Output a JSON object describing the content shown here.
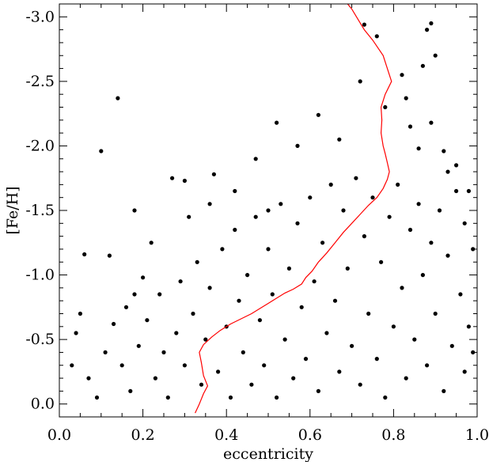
{
  "chart_data": {
    "type": "scatter",
    "xlabel": "eccentricity",
    "ylabel": "[Fe/H]",
    "xlim": [
      0.0,
      1.0
    ],
    "ylim": [
      0.1,
      -3.1
    ],
    "y_axis_inverted": true,
    "x_ticks": [
      0.0,
      0.2,
      0.4,
      0.6,
      0.8,
      1.0
    ],
    "x_tick_labels": [
      "0.0",
      "0.2",
      "0.4",
      "0.6",
      "0.8",
      "1.0"
    ],
    "y_ticks": [
      -3.0,
      -2.5,
      -2.0,
      -1.5,
      -1.0,
      -0.5,
      0.0
    ],
    "y_tick_labels": [
      "-3.0",
      "-2.5",
      "-2.0",
      "-1.5",
      "-1.0",
      "-0.5",
      "0.0"
    ],
    "grid": false,
    "legend": "none",
    "colors": {
      "points": "#000000",
      "trend_line": "#ff0000"
    },
    "series": [
      {
        "type": "scatter",
        "points": [
          [
            0.14,
            -2.37
          ],
          [
            0.1,
            -1.96
          ],
          [
            0.06,
            -1.16
          ],
          [
            0.12,
            -1.15
          ],
          [
            0.18,
            -1.5
          ],
          [
            0.27,
            -1.75
          ],
          [
            0.3,
            -1.73
          ],
          [
            0.37,
            -1.78
          ],
          [
            0.52,
            -2.18
          ],
          [
            0.57,
            -2.0
          ],
          [
            0.62,
            -2.24
          ],
          [
            0.67,
            -2.05
          ],
          [
            0.72,
            -2.5
          ],
          [
            0.73,
            -2.94
          ],
          [
            0.76,
            -2.85
          ],
          [
            0.78,
            -2.3
          ],
          [
            0.83,
            -2.37
          ],
          [
            0.84,
            -2.15
          ],
          [
            0.82,
            -2.55
          ],
          [
            0.87,
            -2.62
          ],
          [
            0.88,
            -2.9
          ],
          [
            0.89,
            -2.95
          ],
          [
            0.9,
            -2.7
          ],
          [
            0.89,
            -2.18
          ],
          [
            0.86,
            -1.98
          ],
          [
            0.92,
            -1.96
          ],
          [
            0.98,
            -1.65
          ],
          [
            0.95,
            -1.85
          ],
          [
            0.47,
            -1.9
          ],
          [
            0.42,
            -1.65
          ],
          [
            0.5,
            -1.5
          ],
          [
            0.36,
            -1.55
          ],
          [
            0.31,
            -1.45
          ],
          [
            0.22,
            -1.25
          ],
          [
            0.2,
            -0.98
          ],
          [
            0.18,
            -0.85
          ],
          [
            0.99,
            -0.4
          ],
          [
            0.97,
            -0.25
          ],
          [
            0.03,
            -0.3
          ],
          [
            0.04,
            -0.55
          ],
          [
            0.05,
            -0.7
          ],
          [
            0.07,
            -0.2
          ],
          [
            0.09,
            -0.05
          ],
          [
            0.11,
            -0.4
          ],
          [
            0.13,
            -0.62
          ],
          [
            0.15,
            -0.3
          ],
          [
            0.16,
            -0.75
          ],
          [
            0.17,
            -0.1
          ],
          [
            0.19,
            -0.45
          ],
          [
            0.21,
            -0.65
          ],
          [
            0.23,
            -0.2
          ],
          [
            0.24,
            -0.85
          ],
          [
            0.25,
            -0.4
          ],
          [
            0.26,
            -0.05
          ],
          [
            0.28,
            -0.55
          ],
          [
            0.29,
            -0.95
          ],
          [
            0.3,
            -0.3
          ],
          [
            0.32,
            -0.7
          ],
          [
            0.33,
            -1.1
          ],
          [
            0.34,
            -0.15
          ],
          [
            0.35,
            -0.5
          ],
          [
            0.36,
            -0.9
          ],
          [
            0.38,
            -0.25
          ],
          [
            0.39,
            -1.2
          ],
          [
            0.4,
            -0.6
          ],
          [
            0.41,
            -0.05
          ],
          [
            0.42,
            -1.35
          ],
          [
            0.43,
            -0.8
          ],
          [
            0.44,
            -0.4
          ],
          [
            0.45,
            -1.0
          ],
          [
            0.46,
            -0.15
          ],
          [
            0.47,
            -1.45
          ],
          [
            0.48,
            -0.65
          ],
          [
            0.49,
            -0.3
          ],
          [
            0.5,
            -1.2
          ],
          [
            0.51,
            -0.85
          ],
          [
            0.52,
            -0.05
          ],
          [
            0.53,
            -1.55
          ],
          [
            0.54,
            -0.5
          ],
          [
            0.55,
            -1.05
          ],
          [
            0.56,
            -0.2
          ],
          [
            0.57,
            -1.4
          ],
          [
            0.58,
            -0.75
          ],
          [
            0.59,
            -0.35
          ],
          [
            0.6,
            -1.6
          ],
          [
            0.61,
            -0.95
          ],
          [
            0.62,
            -0.1
          ],
          [
            0.63,
            -1.25
          ],
          [
            0.64,
            -0.55
          ],
          [
            0.65,
            -1.7
          ],
          [
            0.66,
            -0.8
          ],
          [
            0.67,
            -0.25
          ],
          [
            0.68,
            -1.5
          ],
          [
            0.69,
            -1.05
          ],
          [
            0.7,
            -0.45
          ],
          [
            0.71,
            -1.75
          ],
          [
            0.72,
            -0.15
          ],
          [
            0.73,
            -1.3
          ],
          [
            0.74,
            -0.7
          ],
          [
            0.75,
            -1.6
          ],
          [
            0.76,
            -0.35
          ],
          [
            0.77,
            -1.1
          ],
          [
            0.78,
            -0.05
          ],
          [
            0.79,
            -1.45
          ],
          [
            0.8,
            -0.6
          ],
          [
            0.81,
            -1.7
          ],
          [
            0.82,
            -0.9
          ],
          [
            0.83,
            -0.2
          ],
          [
            0.84,
            -1.35
          ],
          [
            0.85,
            -0.5
          ],
          [
            0.86,
            -1.55
          ],
          [
            0.87,
            -1.0
          ],
          [
            0.88,
            -0.3
          ],
          [
            0.89,
            -1.25
          ],
          [
            0.9,
            -0.7
          ],
          [
            0.91,
            -1.5
          ],
          [
            0.92,
            -0.1
          ],
          [
            0.93,
            -1.15
          ],
          [
            0.94,
            -0.45
          ],
          [
            0.95,
            -1.65
          ],
          [
            0.96,
            -0.85
          ],
          [
            0.97,
            -1.4
          ],
          [
            0.98,
            -0.6
          ],
          [
            0.99,
            -1.2
          ],
          [
            0.93,
            -1.8
          ]
        ]
      },
      {
        "type": "line",
        "points": [
          [
            0.325,
            0.07
          ],
          [
            0.335,
            0.0
          ],
          [
            0.345,
            -0.08
          ],
          [
            0.355,
            -0.14
          ],
          [
            0.345,
            -0.22
          ],
          [
            0.34,
            -0.32
          ],
          [
            0.335,
            -0.4
          ],
          [
            0.345,
            -0.46
          ],
          [
            0.365,
            -0.52
          ],
          [
            0.385,
            -0.57
          ],
          [
            0.41,
            -0.62
          ],
          [
            0.435,
            -0.66
          ],
          [
            0.46,
            -0.7
          ],
          [
            0.48,
            -0.74
          ],
          [
            0.5,
            -0.78
          ],
          [
            0.52,
            -0.82
          ],
          [
            0.54,
            -0.86
          ],
          [
            0.56,
            -0.89
          ],
          [
            0.58,
            -0.93
          ],
          [
            0.59,
            -0.98
          ],
          [
            0.605,
            -1.03
          ],
          [
            0.62,
            -1.1
          ],
          [
            0.64,
            -1.17
          ],
          [
            0.66,
            -1.25
          ],
          [
            0.68,
            -1.33
          ],
          [
            0.7,
            -1.4
          ],
          [
            0.72,
            -1.47
          ],
          [
            0.74,
            -1.54
          ],
          [
            0.76,
            -1.6
          ],
          [
            0.775,
            -1.67
          ],
          [
            0.785,
            -1.74
          ],
          [
            0.79,
            -1.8
          ],
          [
            0.785,
            -1.87
          ],
          [
            0.78,
            -1.94
          ],
          [
            0.775,
            -2.0
          ],
          [
            0.77,
            -2.1
          ],
          [
            0.772,
            -2.2
          ],
          [
            0.77,
            -2.3
          ],
          [
            0.78,
            -2.4
          ],
          [
            0.795,
            -2.5
          ],
          [
            0.785,
            -2.6
          ],
          [
            0.775,
            -2.7
          ],
          [
            0.75,
            -2.82
          ],
          [
            0.73,
            -2.9
          ],
          [
            0.715,
            -2.98
          ],
          [
            0.7,
            -3.06
          ],
          [
            0.69,
            -3.1
          ]
        ]
      }
    ]
  }
}
